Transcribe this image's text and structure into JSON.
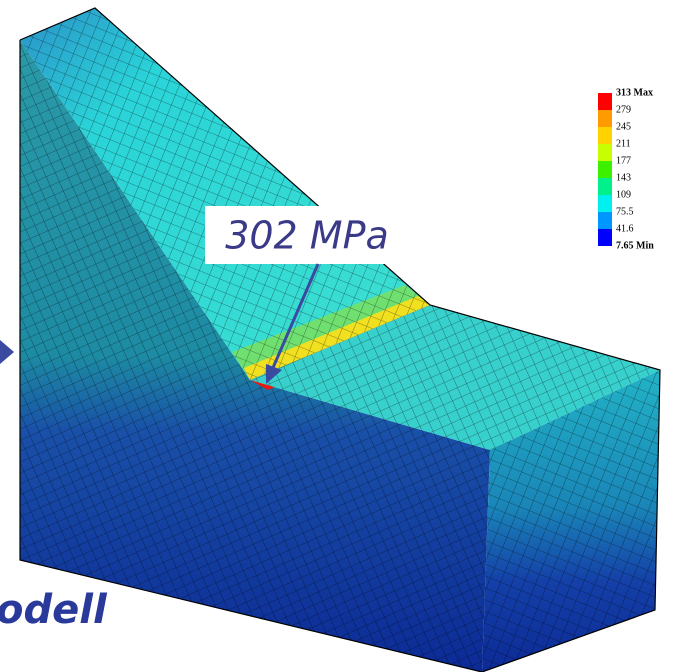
{
  "annotation": "302 MPa",
  "legend": {
    "labels": [
      "313 Max",
      "279",
      "245",
      "211",
      "177",
      "143",
      "109",
      "75.5",
      "41.6",
      "7.65 Min"
    ]
  },
  "caption": "odell"
}
